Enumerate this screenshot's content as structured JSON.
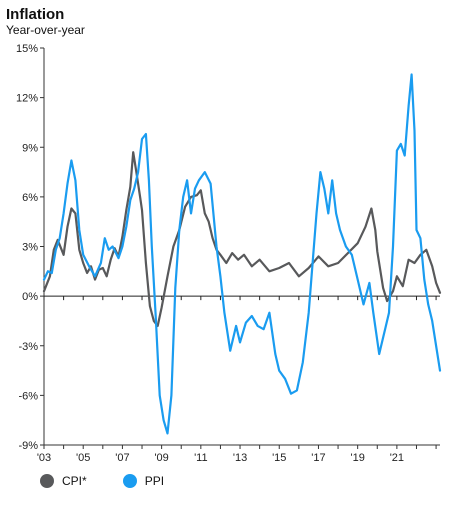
{
  "chart_data": {
    "type": "line",
    "title": "Inflation",
    "subtitle": "Year-over-year",
    "y_ticks": [
      "15%",
      "12%",
      "9%",
      "6%",
      "3%",
      "0%",
      "-3%",
      "-6%",
      "-9%"
    ],
    "ylim": [
      -9,
      15
    ],
    "xlim": [
      2003,
      2023.2
    ],
    "x_ticks": [
      "'03",
      "'05",
      "'07",
      "'09",
      "'11",
      "'13",
      "'15",
      "'17",
      "'19",
      "'21"
    ],
    "grid": false,
    "legend_position": "bottom-left",
    "series": [
      {
        "name": "CPI*",
        "color": "#58595b",
        "points": [
          [
            2003.0,
            0.3
          ],
          [
            2003.3,
            1.2
          ],
          [
            2003.5,
            2.8
          ],
          [
            2003.7,
            3.4
          ],
          [
            2004.0,
            2.5
          ],
          [
            2004.2,
            4.2
          ],
          [
            2004.4,
            5.3
          ],
          [
            2004.6,
            5.0
          ],
          [
            2004.8,
            2.8
          ],
          [
            2005.0,
            2.0
          ],
          [
            2005.2,
            1.4
          ],
          [
            2005.4,
            1.8
          ],
          [
            2005.6,
            1.0
          ],
          [
            2005.8,
            1.6
          ],
          [
            2006.0,
            1.7
          ],
          [
            2006.2,
            1.2
          ],
          [
            2006.4,
            2.2
          ],
          [
            2006.6,
            2.9
          ],
          [
            2006.8,
            2.4
          ],
          [
            2007.0,
            3.6
          ],
          [
            2007.2,
            5.2
          ],
          [
            2007.4,
            6.6
          ],
          [
            2007.55,
            8.7
          ],
          [
            2007.7,
            7.6
          ],
          [
            2007.9,
            6.0
          ],
          [
            2008.0,
            5.2
          ],
          [
            2008.2,
            2.0
          ],
          [
            2008.4,
            -0.6
          ],
          [
            2008.6,
            -1.5
          ],
          [
            2008.8,
            -1.8
          ],
          [
            2009.0,
            -0.7
          ],
          [
            2009.3,
            1.2
          ],
          [
            2009.6,
            3.0
          ],
          [
            2009.9,
            4.0
          ],
          [
            2010.2,
            5.4
          ],
          [
            2010.5,
            6.0
          ],
          [
            2010.8,
            6.1
          ],
          [
            2011.0,
            6.4
          ],
          [
            2011.2,
            5.0
          ],
          [
            2011.4,
            4.5
          ],
          [
            2011.6,
            3.5
          ],
          [
            2011.8,
            2.8
          ],
          [
            2012.0,
            2.5
          ],
          [
            2012.3,
            2.0
          ],
          [
            2012.6,
            2.6
          ],
          [
            2012.9,
            2.2
          ],
          [
            2013.2,
            2.5
          ],
          [
            2013.6,
            1.8
          ],
          [
            2014.0,
            2.2
          ],
          [
            2014.5,
            1.5
          ],
          [
            2015.0,
            1.7
          ],
          [
            2015.5,
            2.0
          ],
          [
            2016.0,
            1.2
          ],
          [
            2016.5,
            1.7
          ],
          [
            2017.0,
            2.4
          ],
          [
            2017.5,
            1.8
          ],
          [
            2018.0,
            2.0
          ],
          [
            2018.5,
            2.6
          ],
          [
            2019.0,
            3.2
          ],
          [
            2019.4,
            4.2
          ],
          [
            2019.7,
            5.3
          ],
          [
            2019.9,
            4.0
          ],
          [
            2020.0,
            2.7
          ],
          [
            2020.3,
            0.5
          ],
          [
            2020.5,
            -0.3
          ],
          [
            2020.8,
            0.3
          ],
          [
            2021.0,
            1.2
          ],
          [
            2021.3,
            0.6
          ],
          [
            2021.6,
            2.2
          ],
          [
            2021.9,
            2.0
          ],
          [
            2022.2,
            2.5
          ],
          [
            2022.5,
            2.8
          ],
          [
            2022.8,
            1.8
          ],
          [
            2023.0,
            0.8
          ],
          [
            2023.2,
            0.2
          ]
        ]
      },
      {
        "name": "PPI",
        "color": "#1a9cf0",
        "points": [
          [
            2003.0,
            1.0
          ],
          [
            2003.2,
            1.5
          ],
          [
            2003.4,
            1.4
          ],
          [
            2003.6,
            2.8
          ],
          [
            2003.8,
            3.5
          ],
          [
            2004.0,
            5.0
          ],
          [
            2004.2,
            6.8
          ],
          [
            2004.4,
            8.2
          ],
          [
            2004.6,
            7.0
          ],
          [
            2004.8,
            4.0
          ],
          [
            2005.0,
            2.5
          ],
          [
            2005.3,
            1.8
          ],
          [
            2005.6,
            1.2
          ],
          [
            2005.9,
            2.0
          ],
          [
            2006.1,
            3.5
          ],
          [
            2006.3,
            2.8
          ],
          [
            2006.5,
            3.0
          ],
          [
            2006.8,
            2.3
          ],
          [
            2007.0,
            3.0
          ],
          [
            2007.2,
            4.2
          ],
          [
            2007.4,
            5.8
          ],
          [
            2007.6,
            6.5
          ],
          [
            2007.8,
            7.5
          ],
          [
            2008.0,
            9.5
          ],
          [
            2008.2,
            9.8
          ],
          [
            2008.35,
            7.0
          ],
          [
            2008.5,
            3.0
          ],
          [
            2008.7,
            -1.2
          ],
          [
            2008.9,
            -6.0
          ],
          [
            2009.1,
            -7.5
          ],
          [
            2009.3,
            -8.3
          ],
          [
            2009.5,
            -6.0
          ],
          [
            2009.7,
            0.5
          ],
          [
            2009.9,
            4.0
          ],
          [
            2010.1,
            6.0
          ],
          [
            2010.3,
            7.0
          ],
          [
            2010.5,
            5.0
          ],
          [
            2010.7,
            6.5
          ],
          [
            2010.9,
            7.0
          ],
          [
            2011.2,
            7.5
          ],
          [
            2011.5,
            6.8
          ],
          [
            2011.8,
            3.0
          ],
          [
            2012.0,
            1.2
          ],
          [
            2012.2,
            -1.0
          ],
          [
            2012.5,
            -3.3
          ],
          [
            2012.8,
            -1.8
          ],
          [
            2013.0,
            -2.8
          ],
          [
            2013.3,
            -1.6
          ],
          [
            2013.6,
            -1.2
          ],
          [
            2013.9,
            -1.8
          ],
          [
            2014.2,
            -2.0
          ],
          [
            2014.5,
            -1.0
          ],
          [
            2014.8,
            -3.5
          ],
          [
            2015.0,
            -4.5
          ],
          [
            2015.3,
            -5.0
          ],
          [
            2015.6,
            -5.9
          ],
          [
            2015.9,
            -5.7
          ],
          [
            2016.2,
            -4.0
          ],
          [
            2016.5,
            -1.0
          ],
          [
            2016.7,
            2.0
          ],
          [
            2016.9,
            5.0
          ],
          [
            2017.1,
            7.5
          ],
          [
            2017.3,
            6.5
          ],
          [
            2017.5,
            5.0
          ],
          [
            2017.7,
            7.0
          ],
          [
            2017.9,
            5.0
          ],
          [
            2018.1,
            4.0
          ],
          [
            2018.4,
            3.0
          ],
          [
            2018.7,
            2.5
          ],
          [
            2019.0,
            1.0
          ],
          [
            2019.3,
            -0.5
          ],
          [
            2019.6,
            0.8
          ],
          [
            2019.8,
            -1.0
          ],
          [
            2020.1,
            -3.5
          ],
          [
            2020.4,
            -2.0
          ],
          [
            2020.6,
            -1.0
          ],
          [
            2020.8,
            3.0
          ],
          [
            2021.0,
            8.8
          ],
          [
            2021.2,
            9.2
          ],
          [
            2021.4,
            8.5
          ],
          [
            2021.6,
            11.5
          ],
          [
            2021.75,
            13.4
          ],
          [
            2021.9,
            10.0
          ],
          [
            2022.0,
            4.0
          ],
          [
            2022.2,
            3.5
          ],
          [
            2022.4,
            1.0
          ],
          [
            2022.6,
            -0.5
          ],
          [
            2022.8,
            -1.5
          ],
          [
            2023.0,
            -3.0
          ],
          [
            2023.2,
            -4.5
          ]
        ]
      }
    ]
  }
}
